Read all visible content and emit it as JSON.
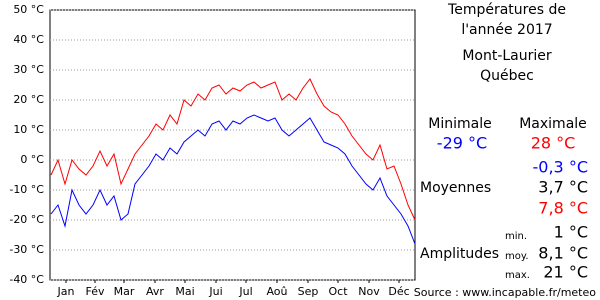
{
  "chart_data": {
    "type": "line",
    "title": "Températures de",
    "subtitle": "l'année 2017",
    "location": "Mont-Laurier",
    "region": "Québec",
    "x": [
      1,
      8,
      15,
      22,
      29,
      36,
      43,
      50,
      57,
      64,
      71,
      78,
      85,
      92,
      99,
      106,
      113,
      120,
      127,
      134,
      141,
      148,
      155,
      162,
      169,
      176,
      183,
      190,
      197,
      204,
      211,
      218,
      225,
      232,
      239,
      246,
      253,
      260,
      267,
      274,
      281,
      288,
      295,
      302,
      309,
      316,
      323,
      330,
      337,
      344,
      351,
      358,
      365
    ],
    "xlim": [
      0,
      365
    ],
    "xticks": [
      {
        "value": 16,
        "label": "Jan"
      },
      {
        "value": 45,
        "label": "Fév"
      },
      {
        "value": 74,
        "label": "Mar"
      },
      {
        "value": 105,
        "label": "Avr"
      },
      {
        "value": 135,
        "label": "Mai"
      },
      {
        "value": 166,
        "label": "Jui"
      },
      {
        "value": 196,
        "label": "Jul"
      },
      {
        "value": 227,
        "label": "Aoû"
      },
      {
        "value": 258,
        "label": "Sep"
      },
      {
        "value": 288,
        "label": "Oct"
      },
      {
        "value": 319,
        "label": "Nov"
      },
      {
        "value": 349,
        "label": "Déc"
      }
    ],
    "ylim": [
      -40,
      50
    ],
    "yticks": [
      {
        "value": 50,
        "label": "50 °C"
      },
      {
        "value": 40,
        "label": "40 °C"
      },
      {
        "value": 30,
        "label": "30 °C"
      },
      {
        "value": 20,
        "label": "20 °C"
      },
      {
        "value": 10,
        "label": "10 °C"
      },
      {
        "value": 0,
        "label": "0 °C"
      },
      {
        "value": -10,
        "label": "-10 °C"
      },
      {
        "value": -20,
        "label": "-20 °C"
      },
      {
        "value": -30,
        "label": "-30 °C"
      },
      {
        "value": -40,
        "label": "-40 °C"
      }
    ],
    "grid": true,
    "series": [
      {
        "name": "Maximale",
        "color": "#ff0000",
        "values": [
          -5,
          0,
          -8,
          0,
          -3,
          -5,
          -2,
          3,
          -2,
          2,
          -8,
          -3,
          2,
          5,
          8,
          12,
          10,
          15,
          12,
          20,
          18,
          22,
          20,
          24,
          25,
          22,
          24,
          23,
          25,
          26,
          24,
          25,
          26,
          20,
          22,
          20,
          24,
          27,
          22,
          18,
          16,
          15,
          12,
          8,
          5,
          2,
          0,
          5,
          -3,
          -2,
          -8,
          -15,
          -20
        ]
      },
      {
        "name": "Minimale",
        "color": "#0000ff",
        "values": [
          -18,
          -15,
          -22,
          -10,
          -15,
          -18,
          -15,
          -10,
          -15,
          -12,
          -20,
          -18,
          -8,
          -5,
          -2,
          2,
          0,
          4,
          2,
          6,
          8,
          10,
          8,
          12,
          13,
          10,
          13,
          12,
          14,
          15,
          14,
          13,
          14,
          10,
          8,
          10,
          12,
          14,
          10,
          6,
          5,
          4,
          2,
          -2,
          -5,
          -8,
          -10,
          -6,
          -12,
          -15,
          -18,
          -22,
          -28
        ]
      }
    ],
    "stats": {
      "min_label": "Minimale",
      "max_label": "Maximale",
      "min": "-29 °C",
      "max": "28 °C",
      "mean_label": "Moyennes",
      "mean_min": "-0,3 °C",
      "mean": "3,7 °C",
      "mean_max": "7,8 °C",
      "amp_label": "Amplitudes",
      "amp_min_label": "min.",
      "amp_min": "1 °C",
      "amp_mean_label": "moy.",
      "amp_mean": "8,1 °C",
      "amp_max_label": "max.",
      "amp_max": "21 °C"
    },
    "source": "Source : www.incapable.fr/meteo"
  }
}
